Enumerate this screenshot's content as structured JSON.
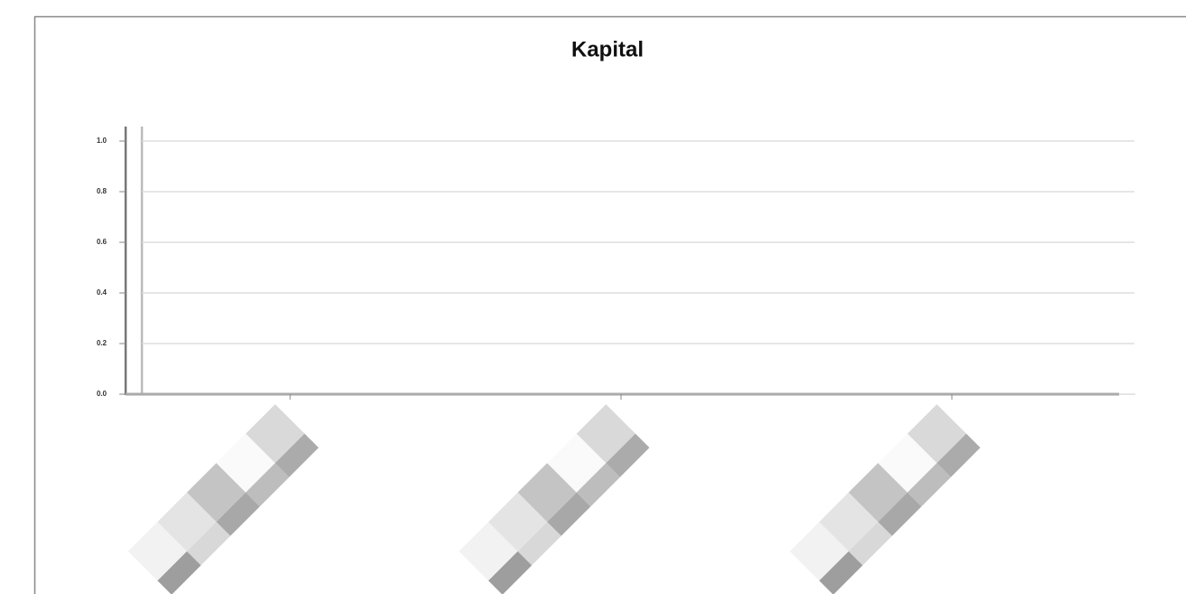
{
  "chart_data": {
    "type": "bar",
    "title": "Kapital",
    "categories": [
      null,
      null,
      null
    ],
    "ylim": [
      0,
      1
    ],
    "yticks": [
      {
        "value": 0,
        "label": "0.0"
      },
      0.2,
      0.4,
      0.6,
      0.8,
      {
        "value": 1,
        "label": "1.0"
      }
    ],
    "grid": true
  }
}
